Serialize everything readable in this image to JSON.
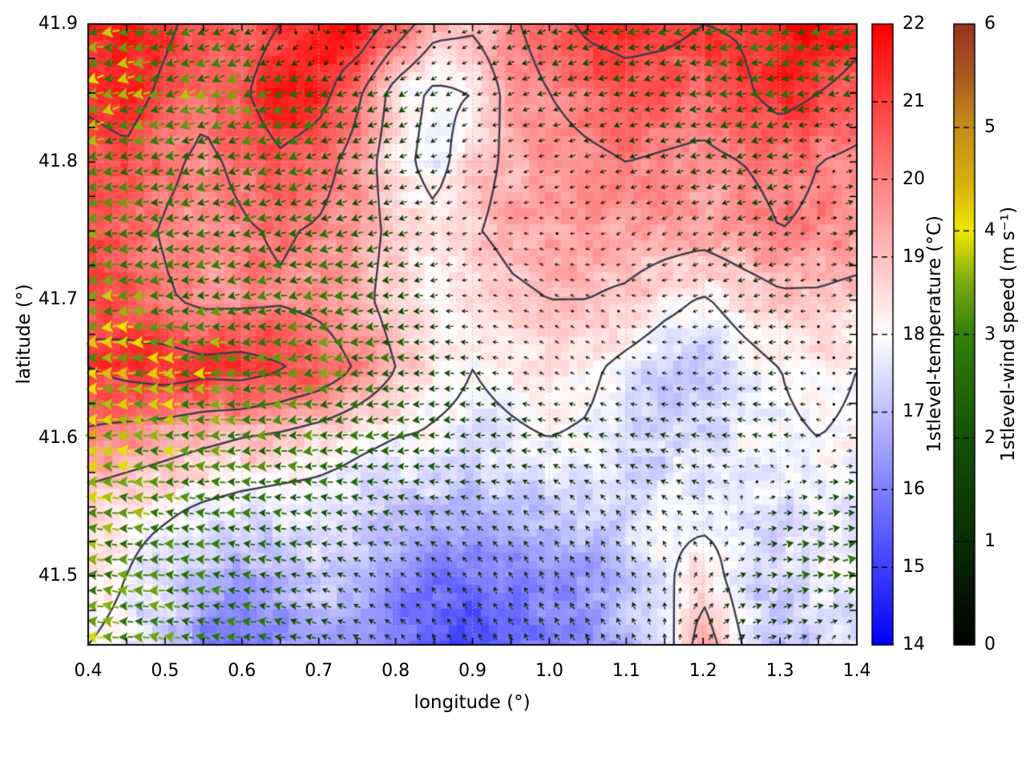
{
  "axes": {
    "x": {
      "label": "longitude (°)",
      "min": 0.4,
      "max": 1.4,
      "tick_values": [
        0.4,
        0.5,
        0.6,
        0.7,
        0.8,
        0.9,
        1.0,
        1.1,
        1.2,
        1.3,
        1.4
      ],
      "tick_labels": [
        "0.4",
        "0.5",
        "0.6",
        "0.7",
        "0.8",
        "0.9",
        "1.0",
        "1.1",
        "1.2",
        "1.3",
        "1.4"
      ],
      "minor_step": 0.05
    },
    "y": {
      "label": "latitude (°)",
      "min": 41.45,
      "max": 41.9,
      "tick_values": [
        41.5,
        41.6,
        41.7,
        41.8,
        41.9
      ],
      "tick_labels": [
        "41.5",
        "41.6",
        "41.7",
        "41.8",
        "41.9"
      ],
      "minor_step": 0.025
    }
  },
  "colorbars": [
    {
      "label": "1stlevel-temperature (°C)",
      "min": 14,
      "max": 22,
      "tick_values": [
        14,
        15,
        16,
        17,
        18,
        19,
        20,
        21,
        22
      ],
      "tick_labels": [
        "14",
        "15",
        "16",
        "17",
        "18",
        "19",
        "20",
        "21",
        "22"
      ],
      "stops": [
        [
          14,
          "#0000ff"
        ],
        [
          18,
          "#ffffff"
        ],
        [
          22,
          "#ff0000"
        ]
      ]
    },
    {
      "label": "1stlevel-wind speed (m s⁻¹)",
      "min": 0,
      "max": 6,
      "tick_values": [
        0,
        1,
        2,
        3,
        4,
        5,
        6
      ],
      "tick_labels": [
        "0",
        "1",
        "2",
        "3",
        "4",
        "5",
        "6"
      ],
      "stops": [
        [
          0,
          "#000000"
        ],
        [
          1,
          "#0a2d04"
        ],
        [
          2,
          "#155106"
        ],
        [
          3,
          "#35800c"
        ],
        [
          3.5,
          "#79aa12"
        ],
        [
          4,
          "#f0e800"
        ],
        [
          4.5,
          "#d6ac10"
        ],
        [
          5,
          "#c58f1a"
        ],
        [
          5.5,
          "#a85a20"
        ],
        [
          6,
          "#9a3322"
        ]
      ]
    }
  ],
  "style": {
    "contour_color": "#3c3c4a",
    "grid_color": "#b8b8b8",
    "frame_color": "#000000"
  },
  "chart_data": {
    "type": "heatmap",
    "subtype": "temperature-field-with-wind-quiver",
    "grid_on": true,
    "contour_levels": [
      18,
      19,
      20,
      21
    ],
    "temperature": {
      "units": "°C",
      "lon": [
        0.4,
        0.45,
        0.5,
        0.55,
        0.6,
        0.65,
        0.7,
        0.75,
        0.8,
        0.85,
        0.9,
        0.95,
        1.0,
        1.05,
        1.1,
        1.15,
        1.2,
        1.25,
        1.3,
        1.35,
        1.4
      ],
      "lat": [
        41.9,
        41.85,
        41.8,
        41.75,
        41.7,
        41.65,
        41.6,
        41.55,
        41.5,
        41.45
      ],
      "values": [
        [
          21.4,
          21.6,
          21.2,
          20.6,
          20.4,
          21.0,
          21.6,
          21.8,
          20.6,
          19.4,
          19.2,
          19.8,
          20.6,
          21.2,
          21.4,
          21.3,
          21.0,
          21.1,
          21.6,
          22.0,
          21.4
        ],
        [
          21.2,
          21.4,
          20.8,
          20.2,
          20.8,
          21.8,
          21.4,
          20.2,
          18.6,
          17.8,
          18.0,
          19.4,
          20.0,
          20.4,
          20.6,
          20.5,
          20.4,
          20.8,
          21.4,
          21.0,
          20.6
        ],
        [
          20.6,
          20.8,
          20.2,
          19.8,
          20.2,
          20.8,
          20.4,
          19.6,
          18.4,
          17.6,
          18.6,
          19.2,
          19.6,
          19.8,
          20.0,
          19.9,
          19.8,
          20.0,
          20.2,
          20.0,
          19.8
        ],
        [
          20.8,
          20.4,
          19.9,
          19.7,
          19.9,
          20.1,
          19.9,
          19.5,
          18.7,
          18.3,
          18.9,
          19.3,
          19.5,
          19.5,
          19.6,
          19.5,
          19.4,
          19.7,
          20.0,
          19.9,
          19.7
        ],
        [
          21.0,
          20.6,
          20.1,
          19.8,
          19.8,
          19.9,
          19.7,
          19.3,
          18.6,
          18.1,
          18.3,
          18.8,
          19.0,
          19.0,
          18.8,
          18.3,
          17.9,
          18.4,
          18.8,
          18.8,
          18.6
        ],
        [
          21.0,
          21.3,
          21.5,
          21.3,
          21.4,
          21.1,
          20.7,
          19.9,
          19.0,
          18.3,
          18.0,
          18.2,
          18.4,
          18.2,
          17.7,
          17.3,
          17.1,
          17.6,
          18.0,
          18.2,
          18.0
        ],
        [
          19.8,
          19.6,
          19.4,
          19.2,
          19.0,
          18.8,
          18.5,
          18.2,
          18.0,
          17.9,
          17.8,
          17.9,
          18.0,
          17.9,
          17.5,
          17.3,
          17.4,
          17.8,
          17.9,
          18.0,
          17.9
        ],
        [
          18.6,
          18.4,
          18.2,
          17.9,
          17.7,
          17.6,
          17.6,
          17.5,
          17.3,
          17.0,
          16.8,
          17.0,
          17.2,
          17.4,
          17.6,
          17.8,
          17.6,
          17.8,
          17.5,
          17.8,
          17.6
        ],
        [
          18.3,
          18.0,
          17.4,
          16.8,
          16.5,
          17.0,
          17.2,
          17.0,
          16.5,
          16.0,
          15.8,
          16.0,
          16.2,
          16.5,
          17.2,
          17.8,
          18.6,
          17.5,
          17.2,
          18.0,
          17.8
        ],
        [
          18.0,
          17.8,
          17.2,
          16.2,
          15.8,
          16.2,
          16.5,
          16.3,
          15.8,
          15.4,
          15.2,
          15.5,
          15.8,
          16.0,
          16.8,
          17.5,
          19.6,
          18.0,
          16.8,
          17.5,
          17.5
        ]
      ]
    },
    "wind": {
      "units": "m s⁻¹",
      "lon": [
        0.4,
        0.5,
        0.6,
        0.7,
        0.8,
        0.9,
        1.0,
        1.1,
        1.2,
        1.3,
        1.4
      ],
      "lat": [
        41.9,
        41.85,
        41.8,
        41.75,
        41.7,
        41.65,
        41.6,
        41.55,
        41.5,
        41.45
      ],
      "u": [
        [
          -3.2,
          -2.8,
          -2.0,
          1.5,
          1.8,
          -0.8,
          -1.8,
          -2.0,
          -2.2,
          -2.8,
          -2.4
        ],
        [
          -3.4,
          -3.0,
          -2.8,
          -2.5,
          -1.5,
          -0.6,
          -1.2,
          -1.8,
          -2.0,
          -2.4,
          -2.2
        ],
        [
          -3.0,
          -2.6,
          -2.4,
          -2.2,
          -1.2,
          -0.4,
          -0.5,
          -1.0,
          -1.5,
          -1.8,
          1.0
        ],
        [
          -3.2,
          -2.5,
          -2.5,
          -2.4,
          -1.6,
          -0.3,
          -0.3,
          -0.4,
          -0.8,
          -1.5,
          1.8
        ],
        [
          -3.6,
          -2.8,
          -2.6,
          -2.8,
          -2.0,
          -0.4,
          -0.3,
          -0.3,
          -0.5,
          -1.0,
          1.0
        ],
        [
          -3.8,
          -3.6,
          -3.2,
          -3.0,
          -2.4,
          -1.2,
          -0.3,
          -0.3,
          -0.8,
          -1.2,
          0.8
        ],
        [
          -3.9,
          -3.4,
          -3.0,
          -2.8,
          -2.5,
          -1.8,
          -1.5,
          -1.2,
          -1.5,
          -1.2,
          0.5
        ],
        [
          -3.2,
          -3.0,
          -2.6,
          -2.2,
          -1.8,
          -1.2,
          -0.8,
          -0.6,
          -1.0,
          1.5,
          2.2
        ],
        [
          -3.0,
          -2.8,
          -2.4,
          -1.5,
          -0.8,
          -0.4,
          -0.5,
          -0.6,
          0.4,
          2.0,
          2.5
        ],
        [
          -3.4,
          -3.0,
          -2.8,
          -2.0,
          -0.6,
          -0.5,
          -0.8,
          -0.5,
          0.5,
          1.5,
          -0.5
        ]
      ],
      "v": [
        [
          -0.8,
          -0.8,
          -1.0,
          -0.4,
          0.5,
          -0.3,
          -0.5,
          -0.6,
          -0.5,
          -0.6,
          -0.8
        ],
        [
          -0.8,
          -1.0,
          -1.2,
          -1.0,
          -0.8,
          -0.3,
          -0.4,
          -0.5,
          -0.5,
          -0.5,
          -0.6
        ],
        [
          -0.5,
          -0.6,
          -0.8,
          -0.8,
          -0.6,
          -0.2,
          -0.2,
          -0.3,
          -0.4,
          -0.4,
          0.3
        ],
        [
          -0.4,
          -0.4,
          -0.5,
          -0.5,
          -0.4,
          -0.1,
          0.1,
          -0.2,
          -0.3,
          -0.3,
          0.4
        ],
        [
          -0.3,
          -0.3,
          -0.4,
          -0.4,
          -0.3,
          0.1,
          0.2,
          0.1,
          -0.2,
          -0.2,
          0.2
        ],
        [
          -0.2,
          -0.2,
          -0.2,
          -0.3,
          -0.2,
          0.2,
          0.2,
          0.2,
          0.1,
          -0.1,
          0.2
        ],
        [
          0.2,
          0.1,
          -0.1,
          -0.2,
          -0.3,
          -0.2,
          0.3,
          0.4,
          0.3,
          0.2,
          0.1
        ],
        [
          0.3,
          0.2,
          0.2,
          0.3,
          0.4,
          0.5,
          0.7,
          0.8,
          0.5,
          0.2,
          0.2
        ],
        [
          0.4,
          0.3,
          0.4,
          0.5,
          0.6,
          0.8,
          1.0,
          0.9,
          0.6,
          0.3,
          0.2
        ],
        [
          0.3,
          0.4,
          0.5,
          0.6,
          0.8,
          1.0,
          1.2,
          1.0,
          0.8,
          0.4,
          0.3
        ]
      ]
    }
  }
}
